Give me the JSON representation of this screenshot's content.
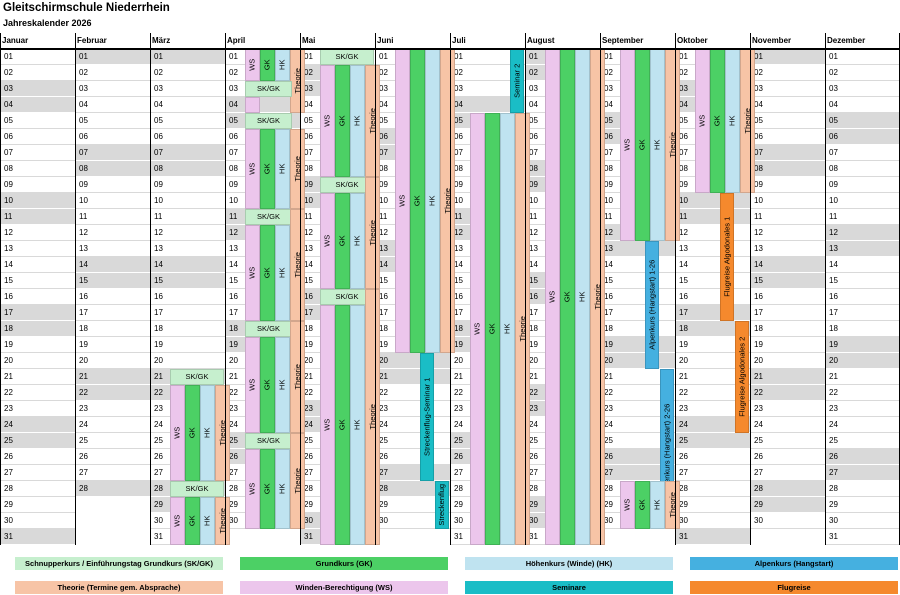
{
  "header": {
    "title": "Gleitschirmschule Niederrhein",
    "subtitle": "Jahreskalender 2026"
  },
  "months": [
    "Januar",
    "Februar",
    "März",
    "April",
    "Mai",
    "Juni",
    "Juli",
    "August",
    "September",
    "Oktober",
    "November",
    "Dezember"
  ],
  "days_in_month": [
    31,
    28,
    31,
    30,
    31,
    30,
    31,
    31,
    30,
    31,
    30,
    31
  ],
  "weekend_days": [
    [
      3,
      4,
      10,
      11,
      17,
      18,
      24,
      25,
      31
    ],
    [
      1,
      7,
      8,
      14,
      15,
      21,
      22,
      28
    ],
    [
      1,
      7,
      8,
      14,
      15,
      21,
      22,
      28,
      29
    ],
    [
      4,
      5,
      11,
      12,
      18,
      19,
      25,
      26
    ],
    [
      2,
      3,
      9,
      10,
      16,
      17,
      23,
      24,
      30,
      31
    ],
    [
      6,
      7,
      13,
      14,
      20,
      21,
      27,
      28
    ],
    [
      4,
      5,
      11,
      12,
      18,
      19,
      25,
      26
    ],
    [
      1,
      2,
      8,
      9,
      15,
      16,
      22,
      23,
      29,
      30
    ],
    [
      5,
      6,
      12,
      13,
      19,
      20,
      26,
      27
    ],
    [
      3,
      4,
      10,
      11,
      17,
      18,
      24,
      25,
      31
    ],
    [
      1,
      7,
      8,
      14,
      15,
      21,
      22,
      28,
      29
    ],
    [
      5,
      6,
      12,
      13,
      19,
      20,
      26,
      27
    ]
  ],
  "colors": {
    "sk": "#c6efce",
    "gk": "#4cd065",
    "hk": "#bfe3f0",
    "alpen": "#45b0e0",
    "theorie": "#f7c4a6",
    "ws": "#ecc6ec",
    "seminar": "#1abdc6",
    "flugreise": "#f5892d",
    "weekend": "#d9d9d9"
  },
  "events": [
    {
      "m": 2,
      "start": 21,
      "end": 21,
      "lane": "wide",
      "type": "sk",
      "label": "SK/GK"
    },
    {
      "m": 2,
      "start": 22,
      "end": 27,
      "lane": 1,
      "type": "ws",
      "label": "WS"
    },
    {
      "m": 2,
      "start": 22,
      "end": 27,
      "lane": 2,
      "type": "gk",
      "label": "GK"
    },
    {
      "m": 2,
      "start": 22,
      "end": 27,
      "lane": 3,
      "type": "hk",
      "label": "HK"
    },
    {
      "m": 2,
      "start": 22,
      "end": 27,
      "lane": 4,
      "type": "theorie",
      "label": "Theorie"
    },
    {
      "m": 2,
      "start": 28,
      "end": 28,
      "lane": "wide",
      "type": "sk",
      "label": "SK/GK"
    },
    {
      "m": 2,
      "start": 29,
      "end": 31,
      "lane": 1,
      "type": "ws",
      "label": "WS"
    },
    {
      "m": 2,
      "start": 29,
      "end": 31,
      "lane": 2,
      "type": "gk",
      "label": "GK"
    },
    {
      "m": 2,
      "start": 29,
      "end": 31,
      "lane": 3,
      "type": "hk",
      "label": "HK"
    },
    {
      "m": 2,
      "start": 29,
      "end": 31,
      "lane": 4,
      "type": "theorie",
      "label": "Theorie"
    },
    {
      "m": 3,
      "start": 1,
      "end": 2,
      "lane": 1,
      "type": "ws",
      "label": "WS"
    },
    {
      "m": 3,
      "start": 1,
      "end": 2,
      "lane": 2,
      "type": "gk",
      "label": "GK"
    },
    {
      "m": 3,
      "start": 1,
      "end": 2,
      "lane": 3,
      "type": "hk",
      "label": "HK"
    },
    {
      "m": 3,
      "start": 1,
      "end": 4,
      "lane": 4,
      "type": "theorie",
      "label": "Theorie"
    },
    {
      "m": 3,
      "start": 3,
      "end": 3,
      "lane": "wide3",
      "type": "sk",
      "label": "SK/GK"
    },
    {
      "m": 3,
      "start": 4,
      "end": 4,
      "lane": 1,
      "type": "ws",
      "label": ""
    },
    {
      "m": 3,
      "start": 5,
      "end": 5,
      "lane": "wide3",
      "type": "sk",
      "label": "SK/GK"
    },
    {
      "m": 3,
      "start": 6,
      "end": 10,
      "lane": 1,
      "type": "ws",
      "label": "WS"
    },
    {
      "m": 3,
      "start": 6,
      "end": 10,
      "lane": 2,
      "type": "gk",
      "label": "GK"
    },
    {
      "m": 3,
      "start": 6,
      "end": 10,
      "lane": 3,
      "type": "hk",
      "label": "HK"
    },
    {
      "m": 3,
      "start": 6,
      "end": 10,
      "lane": 4,
      "type": "theorie",
      "label": "Theorie"
    },
    {
      "m": 3,
      "start": 11,
      "end": 11,
      "lane": "wide3",
      "type": "sk",
      "label": "SK/GK"
    },
    {
      "m": 3,
      "start": 12,
      "end": 17,
      "lane": 1,
      "type": "ws",
      "label": "WS"
    },
    {
      "m": 3,
      "start": 12,
      "end": 17,
      "lane": 2,
      "type": "gk",
      "label": "GK"
    },
    {
      "m": 3,
      "start": 12,
      "end": 17,
      "lane": 3,
      "type": "hk",
      "label": "HK"
    },
    {
      "m": 3,
      "start": 11,
      "end": 17,
      "lane": 4,
      "type": "theorie",
      "label": "Theorie"
    },
    {
      "m": 3,
      "start": 18,
      "end": 18,
      "lane": "wide3",
      "type": "sk",
      "label": "SK/GK"
    },
    {
      "m": 3,
      "start": 19,
      "end": 24,
      "lane": 1,
      "type": "ws",
      "label": "WS"
    },
    {
      "m": 3,
      "start": 19,
      "end": 24,
      "lane": 2,
      "type": "gk",
      "label": "GK"
    },
    {
      "m": 3,
      "start": 19,
      "end": 24,
      "lane": 3,
      "type": "hk",
      "label": "HK"
    },
    {
      "m": 3,
      "start": 18,
      "end": 24,
      "lane": 4,
      "type": "theorie",
      "label": "Theorie"
    },
    {
      "m": 3,
      "start": 25,
      "end": 25,
      "lane": "wide3",
      "type": "sk",
      "label": "SK/GK"
    },
    {
      "m": 3,
      "start": 26,
      "end": 30,
      "lane": 1,
      "type": "ws",
      "label": "WS"
    },
    {
      "m": 3,
      "start": 26,
      "end": 30,
      "lane": 2,
      "type": "gk",
      "label": "GK"
    },
    {
      "m": 3,
      "start": 26,
      "end": 30,
      "lane": 3,
      "type": "hk",
      "label": "HK"
    },
    {
      "m": 3,
      "start": 25,
      "end": 30,
      "lane": 4,
      "type": "theorie",
      "label": "Theorie"
    },
    {
      "m": 4,
      "start": 1,
      "end": 1,
      "lane": "wide",
      "type": "sk",
      "label": "SK/GK"
    },
    {
      "m": 4,
      "start": 2,
      "end": 8,
      "lane": 1,
      "type": "ws",
      "label": "WS"
    },
    {
      "m": 4,
      "start": 2,
      "end": 8,
      "lane": 2,
      "type": "gk",
      "label": "GK"
    },
    {
      "m": 4,
      "start": 2,
      "end": 8,
      "lane": 3,
      "type": "hk",
      "label": "HK"
    },
    {
      "m": 4,
      "start": 2,
      "end": 8,
      "lane": 4,
      "type": "theorie",
      "label": "Theorie"
    },
    {
      "m": 4,
      "start": 9,
      "end": 9,
      "lane": "wide",
      "type": "sk",
      "label": "SK/GK"
    },
    {
      "m": 4,
      "start": 10,
      "end": 15,
      "lane": 1,
      "type": "ws",
      "label": "WS"
    },
    {
      "m": 4,
      "start": 10,
      "end": 15,
      "lane": 2,
      "type": "gk",
      "label": "GK"
    },
    {
      "m": 4,
      "start": 10,
      "end": 15,
      "lane": 3,
      "type": "hk",
      "label": "HK"
    },
    {
      "m": 4,
      "start": 9,
      "end": 15,
      "lane": 4,
      "type": "theorie",
      "label": "Theorie"
    },
    {
      "m": 4,
      "start": 16,
      "end": 16,
      "lane": "wide",
      "type": "sk",
      "label": "SK/GK"
    },
    {
      "m": 4,
      "start": 17,
      "end": 31,
      "lane": 1,
      "type": "ws",
      "label": "WS"
    },
    {
      "m": 4,
      "start": 17,
      "end": 31,
      "lane": 2,
      "type": "gk",
      "label": "GK"
    },
    {
      "m": 4,
      "start": 17,
      "end": 31,
      "lane": 3,
      "type": "hk",
      "label": "HK"
    },
    {
      "m": 4,
      "start": 16,
      "end": 31,
      "lane": 4,
      "type": "theorie",
      "label": "Theorie"
    },
    {
      "m": 5,
      "start": 1,
      "end": 19,
      "lane": 1,
      "type": "ws",
      "label": "WS"
    },
    {
      "m": 5,
      "start": 1,
      "end": 19,
      "lane": 2,
      "type": "gk",
      "label": "GK"
    },
    {
      "m": 5,
      "start": 1,
      "end": 19,
      "lane": 3,
      "type": "hk",
      "label": "HK"
    },
    {
      "m": 5,
      "start": 1,
      "end": 19,
      "lane": 4,
      "type": "theorie",
      "label": "Theorie"
    },
    {
      "m": 5,
      "start": 20,
      "end": 27,
      "lane": "c3",
      "type": "seminar",
      "label": "Streckenflug-Seminar 1"
    },
    {
      "m": 5,
      "start": 28,
      "end": 30,
      "lane": "c4",
      "type": "seminar",
      "label": "Streckenflug"
    },
    {
      "m": 6,
      "start": 1,
      "end": 4,
      "lane": "c4",
      "type": "seminar",
      "label": "Seminar 2"
    },
    {
      "m": 6,
      "start": 5,
      "end": 31,
      "lane": 1,
      "type": "ws",
      "label": "WS"
    },
    {
      "m": 6,
      "start": 5,
      "end": 31,
      "lane": 2,
      "type": "gk",
      "label": "GK"
    },
    {
      "m": 6,
      "start": 5,
      "end": 31,
      "lane": 3,
      "type": "hk",
      "label": "HK"
    },
    {
      "m": 6,
      "start": 5,
      "end": 31,
      "lane": 4,
      "type": "theorie",
      "label": "Theorie"
    },
    {
      "m": 7,
      "start": 1,
      "end": 31,
      "lane": 1,
      "type": "ws",
      "label": "WS"
    },
    {
      "m": 7,
      "start": 1,
      "end": 31,
      "lane": 2,
      "type": "gk",
      "label": "GK"
    },
    {
      "m": 7,
      "start": 1,
      "end": 31,
      "lane": 3,
      "type": "hk",
      "label": "HK"
    },
    {
      "m": 7,
      "start": 1,
      "end": 31,
      "lane": 4,
      "type": "theorie",
      "label": "Theorie"
    },
    {
      "m": 8,
      "start": 1,
      "end": 12,
      "lane": 1,
      "type": "ws",
      "label": "WS"
    },
    {
      "m": 8,
      "start": 1,
      "end": 12,
      "lane": 2,
      "type": "gk",
      "label": "GK"
    },
    {
      "m": 8,
      "start": 1,
      "end": 12,
      "lane": 3,
      "type": "hk",
      "label": "HK"
    },
    {
      "m": 8,
      "start": 1,
      "end": 12,
      "lane": 4,
      "type": "theorie",
      "label": "Theorie"
    },
    {
      "m": 8,
      "start": 13,
      "end": 20,
      "lane": "c3",
      "type": "alpen",
      "label": "Alpenkurs (Hangstart) 1-26"
    },
    {
      "m": 8,
      "start": 21,
      "end": 30,
      "lane": "c4",
      "type": "alpen",
      "label": "Alpenkurs (Hangstart) 2-26"
    },
    {
      "m": 8,
      "start": 28,
      "end": 30,
      "lane": 1,
      "type": "ws",
      "label": "WS"
    },
    {
      "m": 8,
      "start": 28,
      "end": 30,
      "lane": 2,
      "type": "gk",
      "label": "GK"
    },
    {
      "m": 8,
      "start": 28,
      "end": 30,
      "lane": 3,
      "type": "hk",
      "label": "HK"
    },
    {
      "m": 8,
      "start": 28,
      "end": 30,
      "lane": 4,
      "type": "theorie",
      "label": "Theorie"
    },
    {
      "m": 9,
      "start": 1,
      "end": 9,
      "lane": 1,
      "type": "ws",
      "label": "WS"
    },
    {
      "m": 9,
      "start": 1,
      "end": 9,
      "lane": 2,
      "type": "gk",
      "label": "GK"
    },
    {
      "m": 9,
      "start": 1,
      "end": 9,
      "lane": 3,
      "type": "hk",
      "label": "HK"
    },
    {
      "m": 9,
      "start": 1,
      "end": 9,
      "lane": 4,
      "type": "theorie",
      "label": "Theorie"
    },
    {
      "m": 9,
      "start": 10,
      "end": 17,
      "lane": "c3",
      "type": "flugreise",
      "label": "Flugreise Algodonales 1"
    },
    {
      "m": 9,
      "start": 18,
      "end": 24,
      "lane": "c4",
      "type": "flugreise",
      "label": "Flugreise Algodonales 2"
    }
  ],
  "legend": [
    {
      "label": "Schnupperkurs / Einführungstag Grundkurs (SK/GK)",
      "type": "sk"
    },
    {
      "label": "Grundkurs (GK)",
      "type": "gk"
    },
    {
      "label": "Höhenkurs (Winde) (HK)",
      "type": "hk"
    },
    {
      "label": "Alpenkurs (Hangstart)",
      "type": "alpen"
    },
    {
      "label": "Theorie (Termine gem. Absprache)",
      "type": "theorie"
    },
    {
      "label": "Winden-Berechtigung (WS)",
      "type": "ws"
    },
    {
      "label": "Seminare",
      "type": "seminar"
    },
    {
      "label": "Flugreise",
      "type": "flugreise"
    }
  ]
}
